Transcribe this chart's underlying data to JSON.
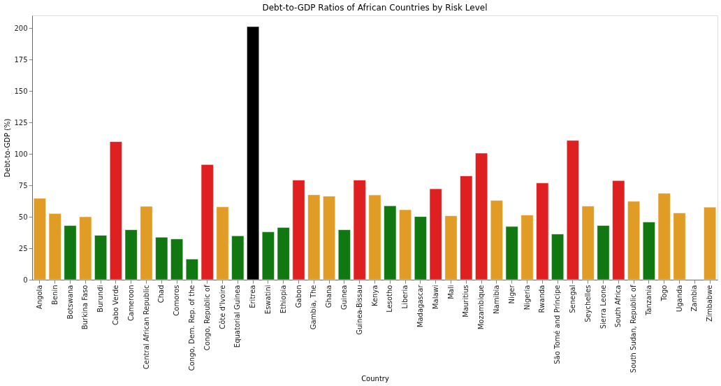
{
  "chart_data": {
    "type": "bar",
    "title": "Debt-to-GDP Ratios of African Countries by Risk Level",
    "xlabel": "Country",
    "ylabel": "Debt-to-GDP (%)",
    "categories": [
      "Angola",
      "Benin",
      "Botswana",
      "Burkina Faso",
      "Burundi",
      "Cabo Verde",
      "Cameroon",
      "Central African Republic",
      "Chad",
      "Comoros",
      "Congo, Dem. Rep. of the",
      "Congo, Republic of",
      "Côte d'Ivoire",
      "Equatorial Guinea",
      "Eritrea",
      "Eswatini",
      "Ethiopia",
      "Gabon",
      "Gambia, The",
      "Ghana",
      "Guinea",
      "Guinea-Bissau",
      "Kenya",
      "Lesotho",
      "Liberia",
      "Madagascar",
      "Malawi",
      "Mali",
      "Mauritius",
      "Mozambique",
      "Namibia",
      "Niger",
      "Nigeria",
      "Rwanda",
      "São Tomé and Príncipe",
      "Senegal",
      "Seychelles",
      "Sierra Leone",
      "South Africa",
      "South Sudan, Republic of",
      "Tanzania",
      "Togo",
      "Uganda",
      "Zambia",
      "Zimbabwe"
    ],
    "values": [
      64.7,
      52.6,
      43,
      50,
      35.3,
      109.7,
      39.7,
      58.3,
      33.8,
      32.4,
      16.4,
      91.5,
      57.9,
      34.9,
      201.1,
      38,
      41.5,
      79.2,
      67.5,
      66.4,
      39.7,
      79.2,
      67.3,
      58.7,
      55.6,
      50.2,
      72.2,
      50.8,
      82.5,
      100.6,
      63,
      42.3,
      51.4,
      76.9,
      36.3,
      110.7,
      58.5,
      43.1,
      78.8,
      62.3,
      45.9,
      68.7,
      53.1,
      null,
      57.7
    ],
    "colors": [
      "#e09c24",
      "#e09c24",
      "#117711",
      "#e09c24",
      "#117711",
      "#de2020",
      "#117711",
      "#e09c24",
      "#117711",
      "#117711",
      "#117711",
      "#de2020",
      "#e09c24",
      "#117711",
      "#000000",
      "#117711",
      "#117711",
      "#de2020",
      "#e09c24",
      "#e09c24",
      "#117711",
      "#de2020",
      "#e09c24",
      "#117711",
      "#e09c24",
      "#117711",
      "#de2020",
      "#e09c24",
      "#de2020",
      "#de2020",
      "#e09c24",
      "#117711",
      "#e09c24",
      "#de2020",
      "#117711",
      "#de2020",
      "#e09c24",
      "#117711",
      "#de2020",
      "#e09c24",
      "#117711",
      "#e09c24",
      "#e09c24",
      "#e09c24",
      "#e09c24"
    ],
    "ylim": [
      0,
      210
    ],
    "yticks": [
      0,
      25,
      50,
      75,
      100,
      125,
      150,
      175,
      200
    ],
    "grid": false
  }
}
